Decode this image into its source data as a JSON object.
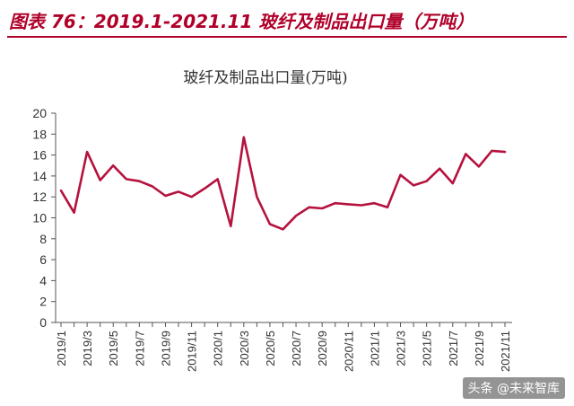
{
  "figure": {
    "title": "图表 76：2019.1-2021.11 玻纤及制品出口量（万吨）",
    "title_color": "#b0002a",
    "rule_color": "#b0002a"
  },
  "watermark": {
    "text": "头条 @未来智库"
  },
  "chart_data": {
    "type": "line",
    "title": "玻纤及制品出口量(万吨)",
    "xlabel": "",
    "ylabel": "",
    "ylim": [
      0,
      20
    ],
    "yticks": [
      0,
      2,
      4,
      6,
      8,
      10,
      12,
      14,
      16,
      18,
      20
    ],
    "line_color": "#b5123e",
    "grid": false,
    "categories": [
      "2019/1",
      "2019/2",
      "2019/3",
      "2019/4",
      "2019/5",
      "2019/6",
      "2019/7",
      "2019/8",
      "2019/9",
      "2019/10",
      "2019/11",
      "2019/12",
      "2020/1",
      "2020/2",
      "2020/3",
      "2020/4",
      "2020/5",
      "2020/6",
      "2020/7",
      "2020/8",
      "2020/9",
      "2020/10",
      "2020/11",
      "2020/12",
      "2021/1",
      "2021/2",
      "2021/3",
      "2021/4",
      "2021/5",
      "2021/6",
      "2021/7",
      "2021/8",
      "2021/9",
      "2021/10",
      "2021/11"
    ],
    "xtick_labels": [
      "2019/1",
      "2019/3",
      "2019/5",
      "2019/7",
      "2019/9",
      "2019/11",
      "2020/1",
      "2020/3",
      "2020/5",
      "2020/7",
      "2020/9",
      "2020/11",
      "2021/1",
      "2021/3",
      "2021/5",
      "2021/7",
      "2021/9",
      "2021/11"
    ],
    "series": [
      {
        "values": [
          12.6,
          10.5,
          16.3,
          13.6,
          15.0,
          13.7,
          13.5,
          13.0,
          12.1,
          12.5,
          12.0,
          12.8,
          13.7,
          9.2,
          17.7,
          12.0,
          9.4,
          8.9,
          10.2,
          11.0,
          10.9,
          11.4,
          11.3,
          11.2,
          11.4,
          11.0,
          14.1,
          13.1,
          13.5,
          14.7,
          13.3,
          16.1,
          14.9,
          16.4,
          16.3
        ]
      }
    ]
  }
}
